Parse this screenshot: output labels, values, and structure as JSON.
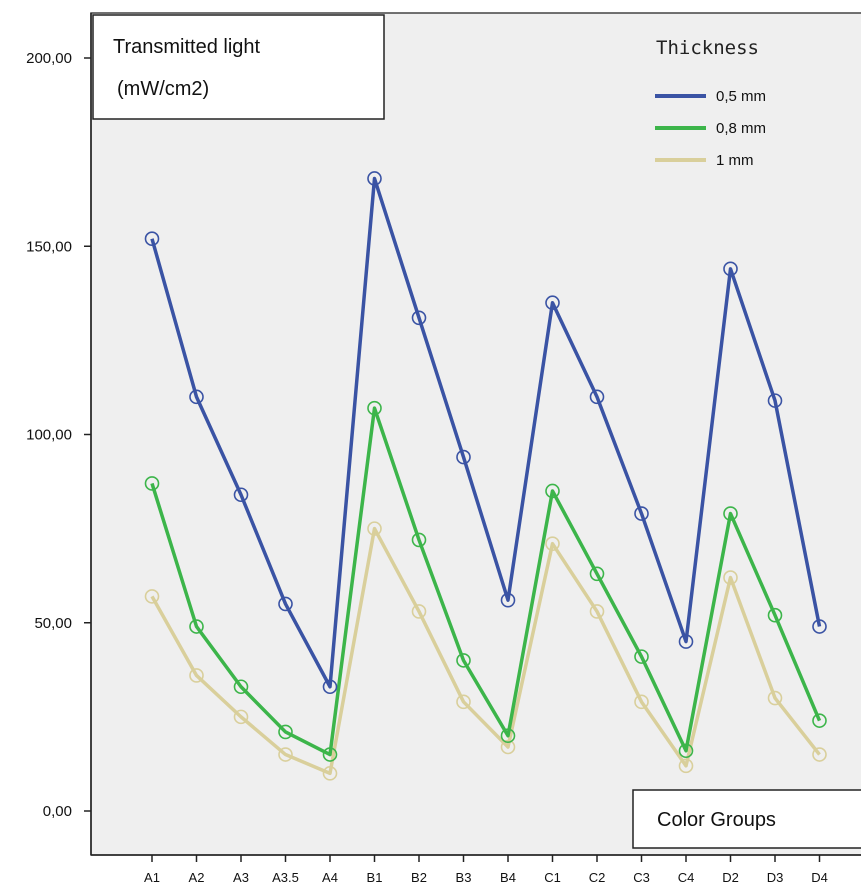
{
  "chart_data": {
    "type": "line",
    "title": "",
    "ylabel": "Transmitted light",
    "ylabel_unit": "(mW/cm2)",
    "xlabel": "Color Groups",
    "legend_title": "Thickness",
    "legend_position": "top-right",
    "grid": false,
    "ylim": [
      0,
      200
    ],
    "y_ticks": [
      "0,00",
      "50,00",
      "100,00",
      "150,00",
      "200,00"
    ],
    "categories": [
      "A1",
      "A2",
      "A3",
      "A3.5",
      "A4",
      "B1",
      "B2",
      "B3",
      "B4",
      "C1",
      "C2",
      "C3",
      "C4",
      "D2",
      "D3",
      "D4"
    ],
    "series": [
      {
        "name": "0,5 mm",
        "color": "#3a53a4",
        "values": [
          152,
          110,
          84,
          55,
          33,
          168,
          131,
          94,
          56,
          135,
          110,
          79,
          45,
          144,
          109,
          49
        ]
      },
      {
        "name": "0,8 mm",
        "color": "#3cb54a",
        "values": [
          87,
          49,
          33,
          21,
          15,
          107,
          72,
          40,
          20,
          85,
          63,
          41,
          16,
          79,
          52,
          24
        ]
      },
      {
        "name": "1 mm",
        "color": "#d9cf9b",
        "values": [
          57,
          36,
          25,
          15,
          10,
          75,
          53,
          29,
          17,
          71,
          53,
          29,
          12,
          62,
          30,
          15
        ]
      }
    ]
  }
}
